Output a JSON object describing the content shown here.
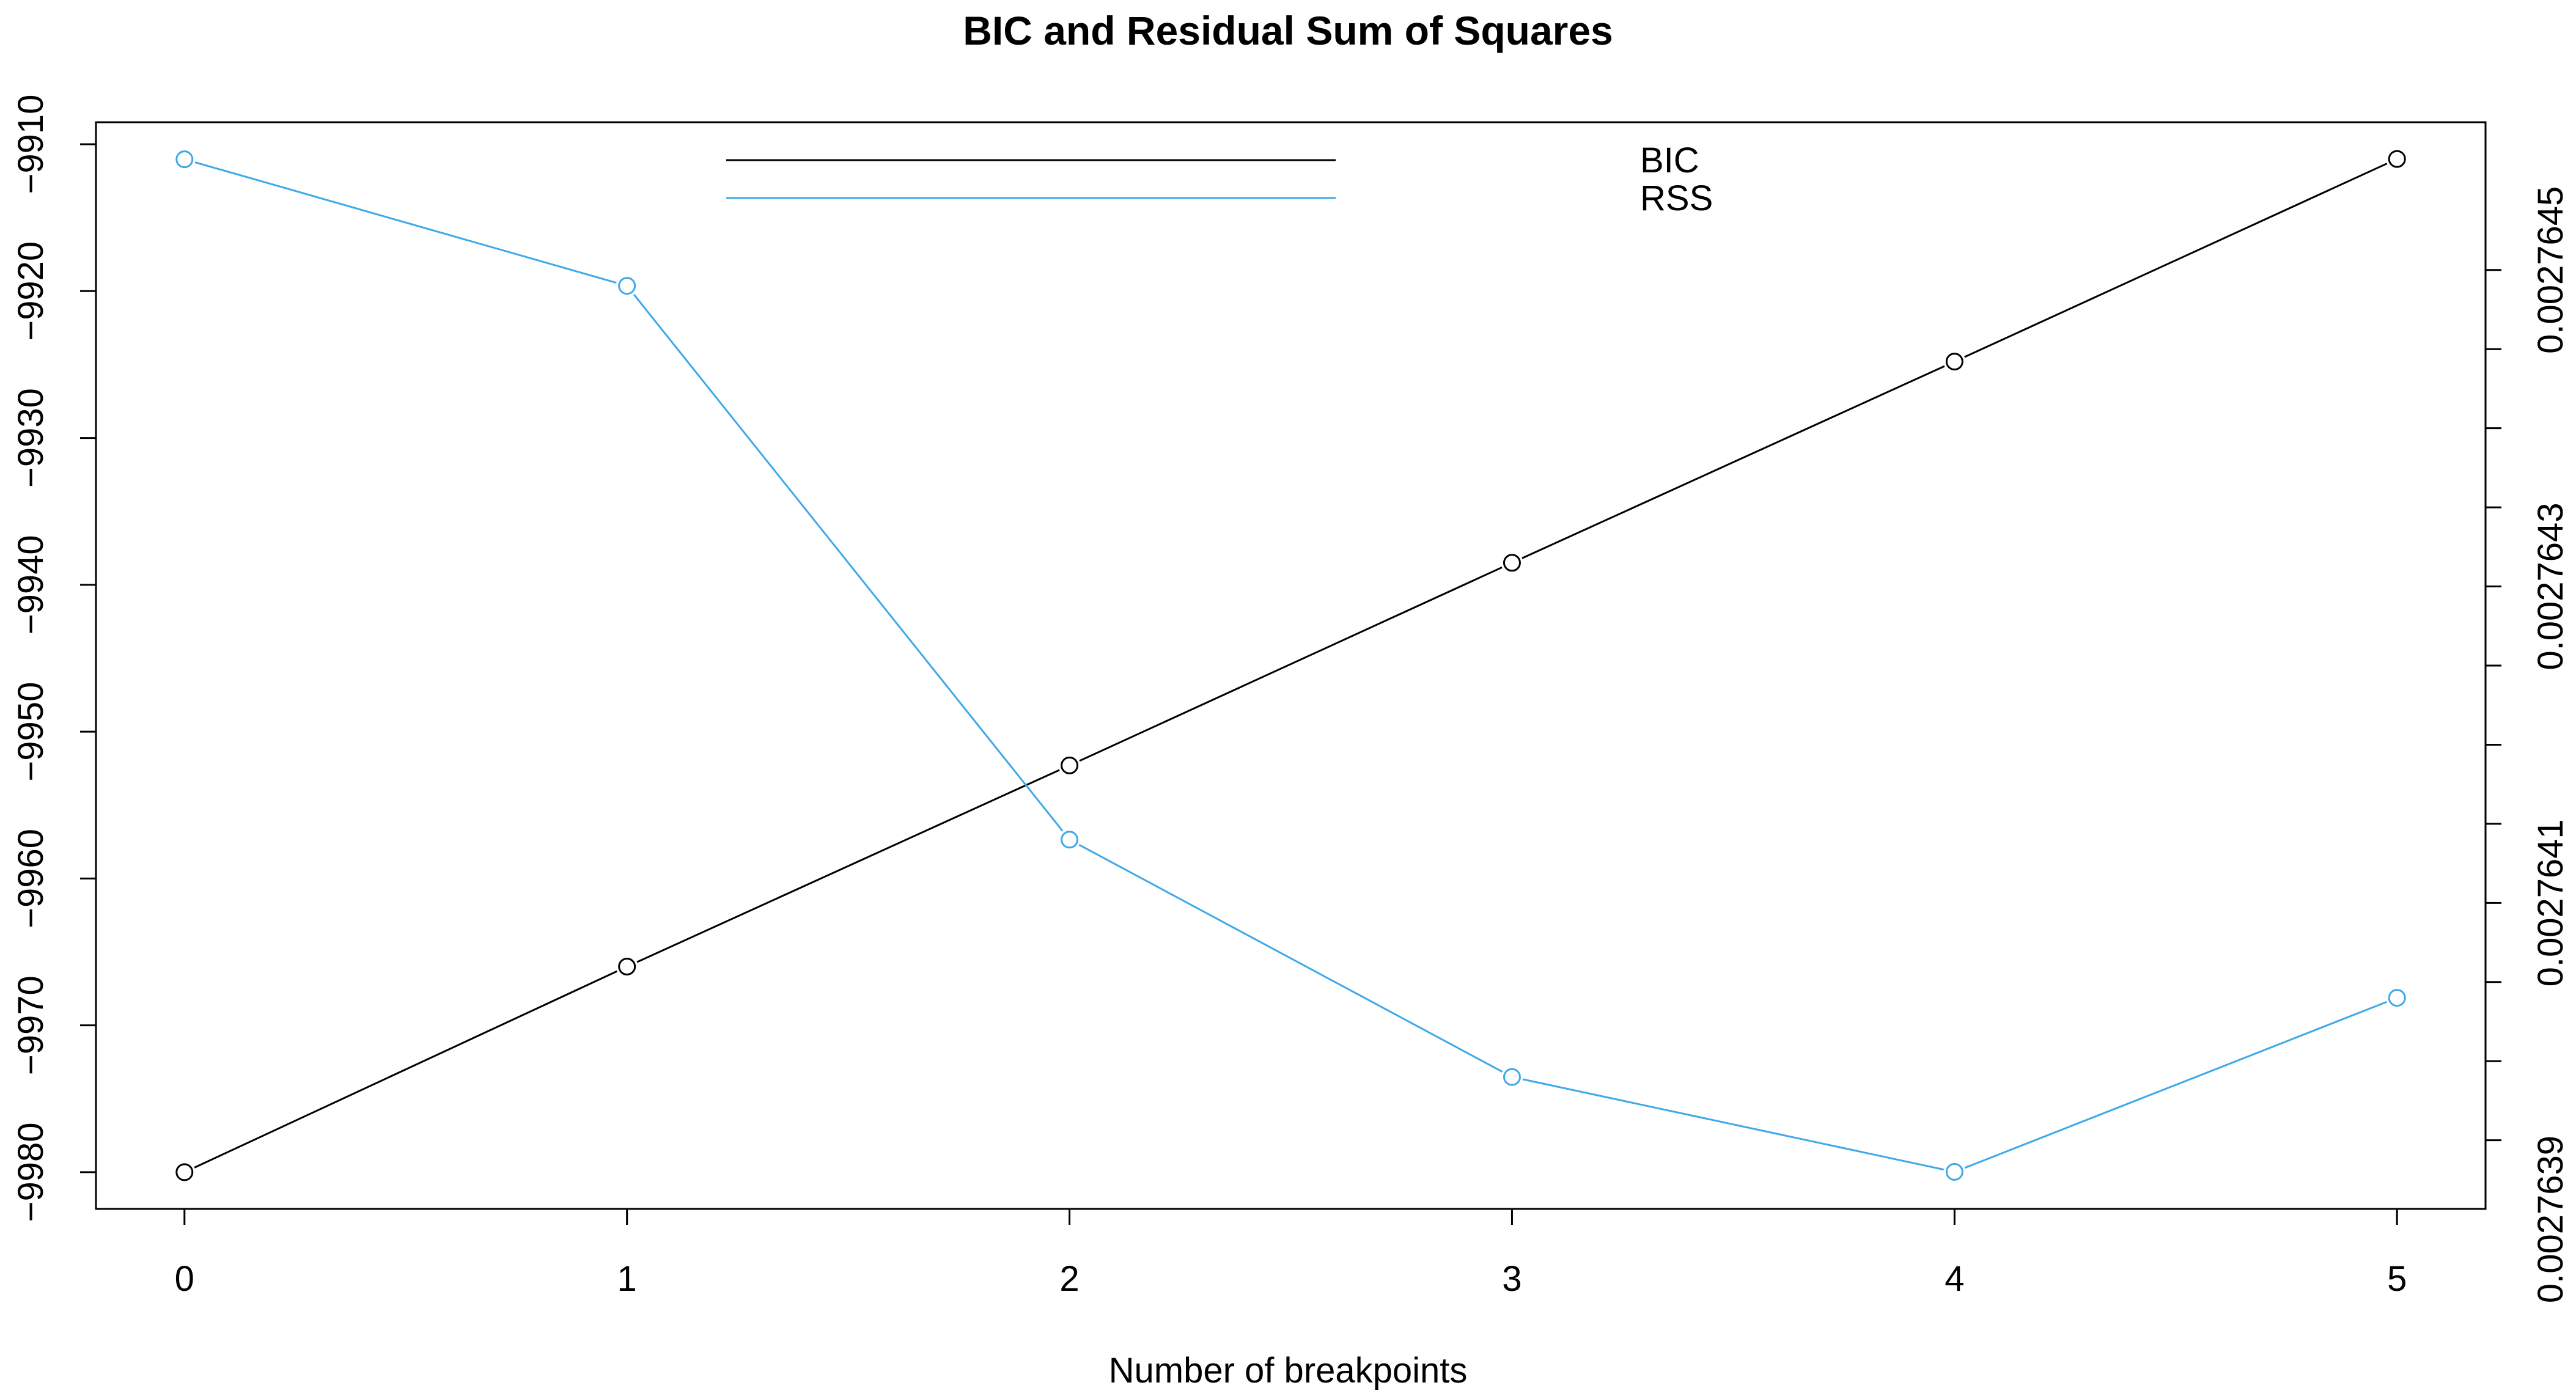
{
  "chart_data": {
    "type": "line",
    "title": "BIC and Residual Sum of Squares",
    "xlabel": "Number of breakpoints",
    "ylabel": "",
    "ylabel_right": "",
    "x": [
      0,
      1,
      2,
      3,
      4,
      5
    ],
    "xlim": [
      -0.2,
      5.2
    ],
    "x_ticks": [
      "0",
      "1",
      "2",
      "3",
      "4",
      "5"
    ],
    "series": [
      {
        "name": "BIC",
        "axis": "left",
        "color": "#000000",
        "marker": "open-circle",
        "values": [
          -9980,
          -9966,
          -9952.3,
          -9938.5,
          -9924.8,
          -9911
        ]
      },
      {
        "name": "RSS",
        "axis": "right",
        "color": "#3FA9E8",
        "marker": "open-circle",
        "values": [
          0.00276452,
          0.00276444,
          0.00276409,
          0.00276394,
          0.00276388,
          0.00276399
        ]
      }
    ],
    "y_left": {
      "lim": [
        -9982.5,
        -9908.5
      ],
      "ticks": [
        -9910,
        -9920,
        -9930,
        -9940,
        -9950,
        -9960,
        -9970,
        -9980
      ],
      "tick_labels": [
        "−9910",
        "−9920",
        "−9930",
        "−9940",
        "−9950",
        "−9960",
        "−9970",
        "−9980"
      ]
    },
    "y_right": {
      "lim": [
        0.0027638566,
        0.0027645434
      ],
      "ticks": [
        0.00276445,
        0.0027644,
        0.00276435,
        0.0027643,
        0.00276425,
        0.0027642,
        0.00276415,
        0.0027641,
        0.00276405,
        0.002764,
        0.00276395,
        0.0027639
      ],
      "labeled_ticks": [
        {
          "value": 0.00276445,
          "label": "0.0027645"
        },
        {
          "value": 0.00276425,
          "label": "0.0027643"
        },
        {
          "value": 0.00276405,
          "label": "0.0027641"
        },
        {
          "value": 0.00276385,
          "label": "0.0027639"
        }
      ]
    },
    "legend": {
      "placement": "top-center",
      "entries": [
        "BIC",
        "RSS"
      ]
    },
    "grid": false
  }
}
